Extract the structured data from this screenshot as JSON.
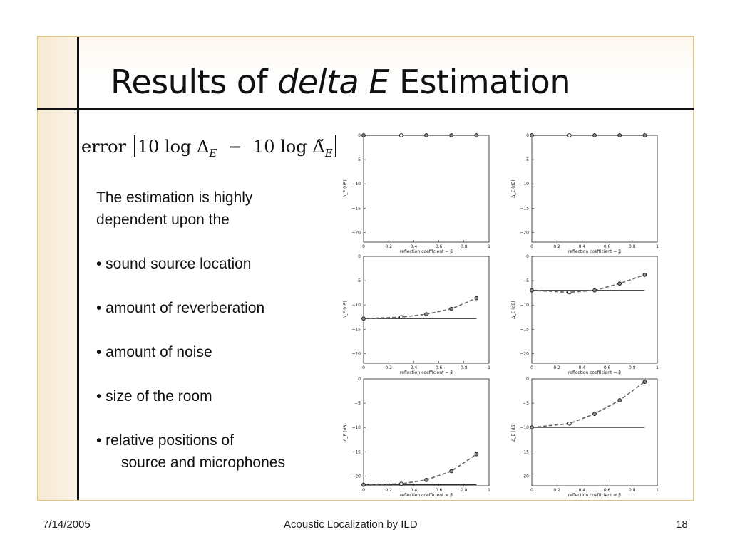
{
  "slide": {
    "title_pre": "Results of ",
    "title_italic": "delta E",
    "title_post": " Estimation",
    "formula": {
      "word": "error",
      "left": "10 log Δ",
      "sub1": "E",
      "minus": "−",
      "right": "10 log Δ̃",
      "sub2": "E"
    },
    "body_lines": [
      "The estimation is highly",
      "dependent upon the",
      "",
      "• sound source location",
      "",
      "• amount of reverberation",
      "",
      "• amount of noise",
      "",
      "• size of the room",
      "",
      "• relative positions of",
      "   source and microphones"
    ],
    "footer": {
      "date": "7/14/2005",
      "center": "Acoustic Localization by ILD",
      "page": "18"
    }
  },
  "chart_data": [
    {
      "type": "line",
      "xlabel": "reflection coefficient = β",
      "ylabel": "Δ_E (dB)",
      "ylim": [
        -22,
        0
      ],
      "xlim": [
        0,
        1
      ],
      "xticks": [
        "0",
        "0.2",
        "0.4",
        "0.6",
        "0.8",
        "1"
      ],
      "yticks": [
        "0",
        "-5",
        "-10",
        "-15",
        "-20"
      ],
      "reference": 0,
      "x": [
        0,
        0.3,
        0.5,
        0.7,
        0.9
      ],
      "values": [
        0,
        0,
        0,
        0,
        0
      ]
    },
    {
      "type": "line",
      "xlabel": "reflection coefficient = β",
      "ylabel": "Δ_E (dB)",
      "ylim": [
        -22,
        0
      ],
      "xlim": [
        0,
        1
      ],
      "xticks": [
        "0",
        "0.2",
        "0.4",
        "0.6",
        "0.8",
        "1"
      ],
      "yticks": [
        "0",
        "-5",
        "-10",
        "-15",
        "-20"
      ],
      "reference": 0,
      "x": [
        0,
        0.3,
        0.5,
        0.7,
        0.9
      ],
      "values": [
        0,
        0,
        0,
        0,
        0
      ]
    },
    {
      "type": "line",
      "xlabel": "reflection coefficient = β",
      "ylabel": "Δ_E (dB)",
      "ylim": [
        -22,
        0
      ],
      "xlim": [
        0,
        1
      ],
      "xticks": [
        "0",
        "0.2",
        "0.4",
        "0.6",
        "0.8",
        "1"
      ],
      "yticks": [
        "0",
        "-5",
        "-10",
        "-15",
        "-20"
      ],
      "reference": -12.8,
      "x": [
        0,
        0.3,
        0.5,
        0.7,
        0.9
      ],
      "values": [
        -12.8,
        -12.5,
        -11.9,
        -10.8,
        -8.6
      ]
    },
    {
      "type": "line",
      "xlabel": "reflection coefficient = β",
      "ylabel": "Δ_E (dB)",
      "ylim": [
        -22,
        0
      ],
      "xlim": [
        0,
        1
      ],
      "xticks": [
        "0",
        "0.2",
        "0.4",
        "0.6",
        "0.8",
        "1"
      ],
      "yticks": [
        "0",
        "-5",
        "-10",
        "-15",
        "-20"
      ],
      "reference": -7,
      "x": [
        0,
        0.3,
        0.5,
        0.7,
        0.9
      ],
      "values": [
        -7,
        -7.4,
        -7,
        -5.6,
        -3.8
      ]
    },
    {
      "type": "line",
      "xlabel": "reflection coefficient = β",
      "ylabel": "Δ_E (dB)",
      "ylim": [
        -22,
        0
      ],
      "xlim": [
        0,
        1
      ],
      "xticks": [
        "0",
        "0.2",
        "0.4",
        "0.6",
        "0.8",
        "1"
      ],
      "yticks": [
        "0",
        "-5",
        "-10",
        "-15",
        "-20"
      ],
      "reference": -21.8,
      "x": [
        0,
        0.3,
        0.5,
        0.7,
        0.9
      ],
      "values": [
        -21.8,
        -21.6,
        -20.8,
        -19,
        -15.5
      ]
    },
    {
      "type": "line",
      "xlabel": "reflection coefficient = β",
      "ylabel": "Δ_E (dB)",
      "ylim": [
        -22,
        0
      ],
      "xlim": [
        0,
        1
      ],
      "xticks": [
        "0",
        "0.2",
        "0.4",
        "0.6",
        "0.8",
        "1"
      ],
      "yticks": [
        "0",
        "-5",
        "-10",
        "-15",
        "-20"
      ],
      "reference": -10,
      "x": [
        0,
        0.3,
        0.5,
        0.7,
        0.9
      ],
      "values": [
        -10,
        -9.2,
        -7.2,
        -4.4,
        -0.6
      ]
    }
  ]
}
